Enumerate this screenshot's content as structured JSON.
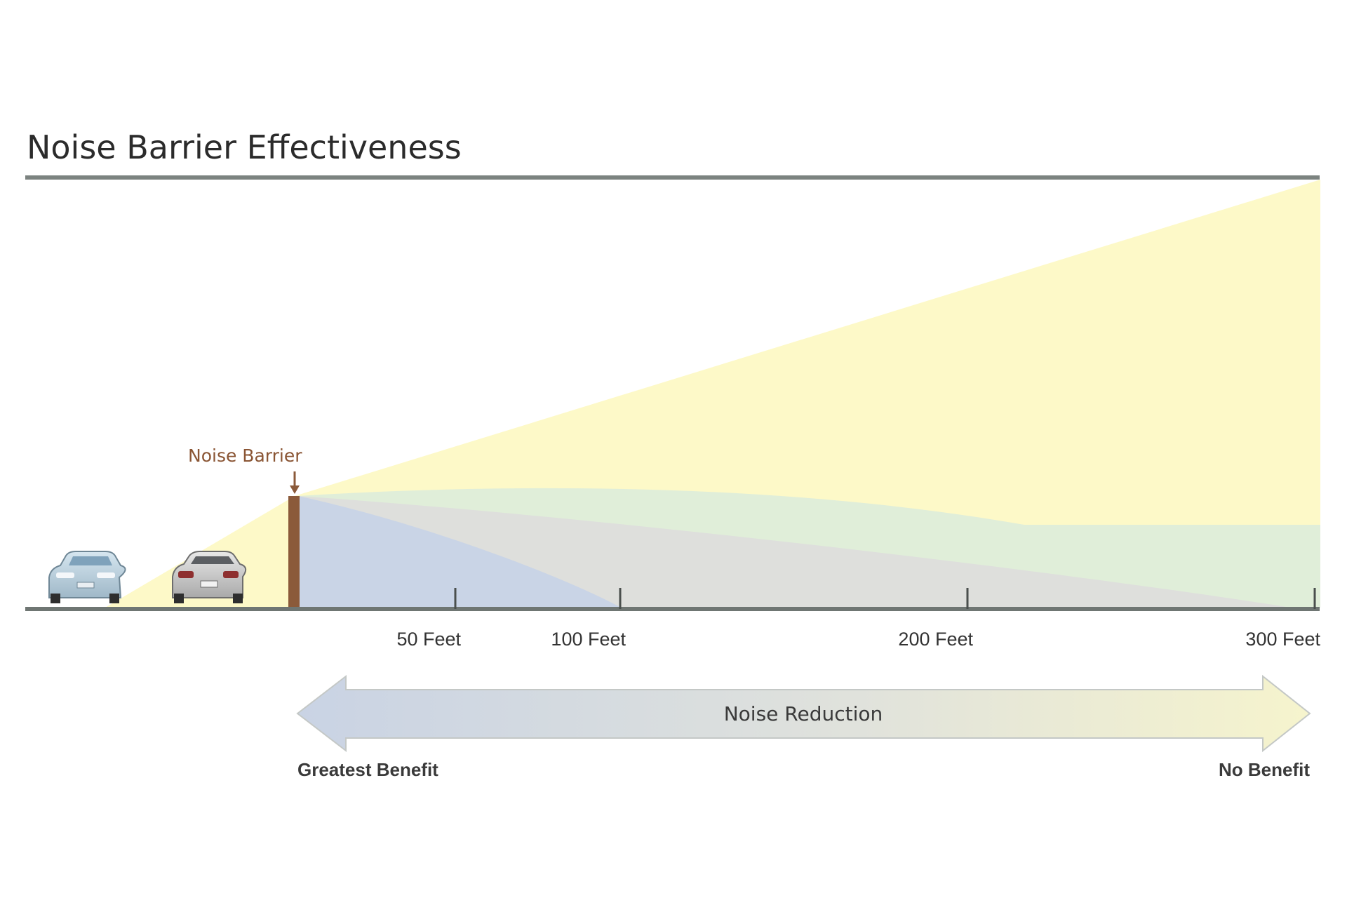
{
  "title": "Noise Barrier Effectiveness",
  "barrier_label": "Noise Barrier",
  "distance_markers": [
    {
      "label": "50 Feet",
      "feet": 50
    },
    {
      "label": "100 Feet",
      "feet": 100
    },
    {
      "label": "200 Feet",
      "feet": 200
    },
    {
      "label": "300 Feet",
      "feet": 300
    }
  ],
  "arrow": {
    "label": "Noise Reduction",
    "left_label": "Greatest Benefit",
    "right_label": "No Benefit"
  },
  "colors": {
    "rule": "#7c8380",
    "sound_cone": "#fdf9c8",
    "shadow_blue": "#c9d4e6",
    "shadow_grey": "#dedfdc",
    "shadow_green": "#e0eed9",
    "barrier": "#8b5a3a",
    "barrier_label": "#8a5534"
  },
  "icons": [
    "car-front-icon",
    "car-rear-icon",
    "down-arrow-icon"
  ]
}
